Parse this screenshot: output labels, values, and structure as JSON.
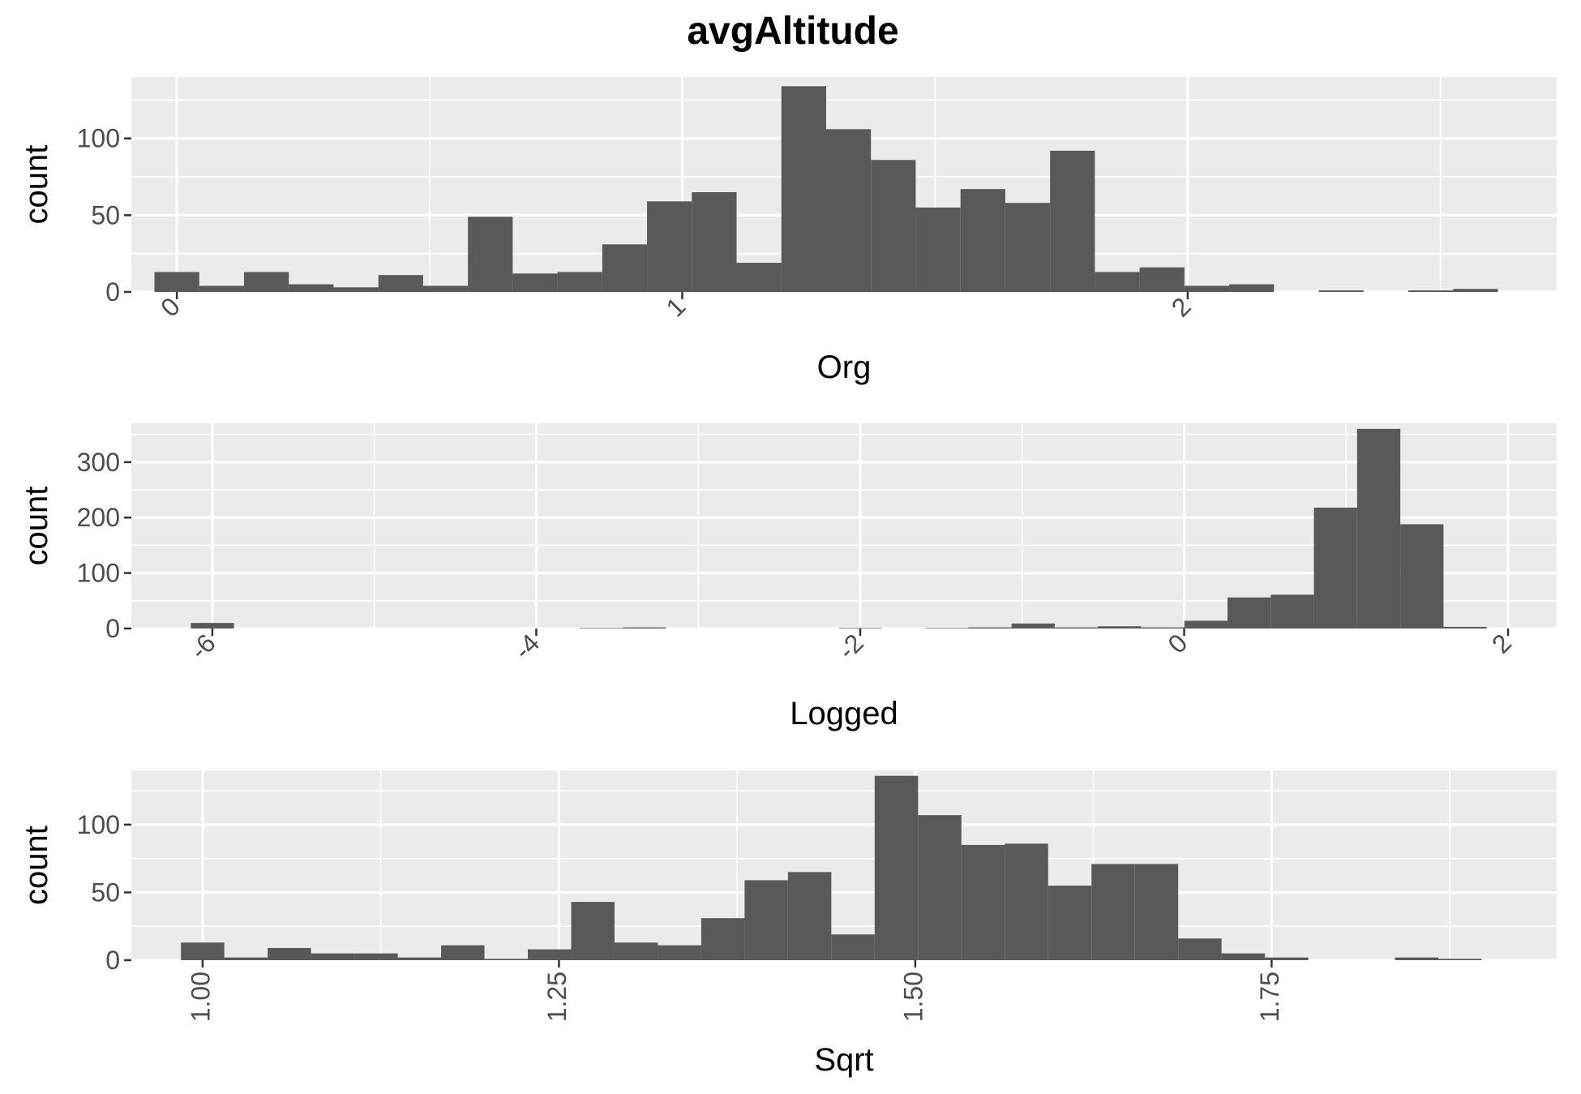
{
  "title": "avgAltitude",
  "chart_data": [
    {
      "type": "bar",
      "subtype": "histogram",
      "xlabel": "Org",
      "ylabel": "count",
      "xlim": [
        -0.09,
        2.73
      ],
      "ylim": [
        0,
        140
      ],
      "x_ticks": [
        0,
        1,
        2
      ],
      "x_tick_labels": [
        "0",
        "1",
        "2"
      ],
      "x_tick_rotation": 45,
      "y_ticks": [
        0,
        50,
        100
      ],
      "y_tick_labels": [
        "0",
        "50",
        "100"
      ],
      "bin_width": 0.0886,
      "bin_start": -0.0443,
      "values": [
        13,
        4,
        13,
        5,
        3,
        11,
        4,
        49,
        12,
        13,
        31,
        59,
        65,
        19,
        134,
        106,
        86,
        55,
        67,
        58,
        92,
        13,
        16,
        4,
        5,
        0,
        1,
        0,
        1,
        2
      ],
      "grid": true
    },
    {
      "type": "bar",
      "subtype": "histogram",
      "xlabel": "Logged",
      "ylabel": "count",
      "xlim": [
        -6.5,
        2.3
      ],
      "ylim": [
        0,
        370
      ],
      "x_ticks": [
        -6,
        -4,
        -2,
        0,
        2
      ],
      "x_tick_labels": [
        "-6",
        "-4",
        "-2",
        "0",
        "2"
      ],
      "x_tick_rotation": 45,
      "y_ticks": [
        0,
        100,
        200,
        300
      ],
      "y_tick_labels": [
        "0",
        "100",
        "200",
        "300"
      ],
      "bin_width": 0.2667,
      "bin_start": -6.133,
      "values": [
        10,
        0,
        0,
        0,
        0,
        0,
        0,
        0,
        0,
        1,
        2,
        0,
        0,
        0,
        0,
        1,
        0,
        1,
        2,
        9,
        2,
        4,
        2,
        14,
        56,
        61,
        218,
        360,
        188,
        3
      ],
      "grid": true
    },
    {
      "type": "bar",
      "subtype": "histogram",
      "xlabel": "Sqrt",
      "ylabel": "count",
      "xlim": [
        0.95,
        1.95
      ],
      "ylim": [
        0,
        140
      ],
      "x_ticks": [
        1.0,
        1.25,
        1.5,
        1.75
      ],
      "x_tick_labels": [
        "1.00",
        "1.25",
        "1.50",
        "1.75"
      ],
      "x_tick_rotation": 90,
      "y_ticks": [
        0,
        50,
        100
      ],
      "y_tick_labels": [
        "0",
        "50",
        "100"
      ],
      "bin_width": 0.03042,
      "bin_start": 0.9848,
      "values": [
        13,
        2,
        9,
        5,
        5,
        2,
        11,
        1,
        8,
        43,
        13,
        11,
        31,
        59,
        65,
        19,
        136,
        107,
        85,
        86,
        55,
        71,
        71,
        16,
        5,
        2,
        0,
        0,
        2,
        1
      ],
      "grid": true
    }
  ]
}
